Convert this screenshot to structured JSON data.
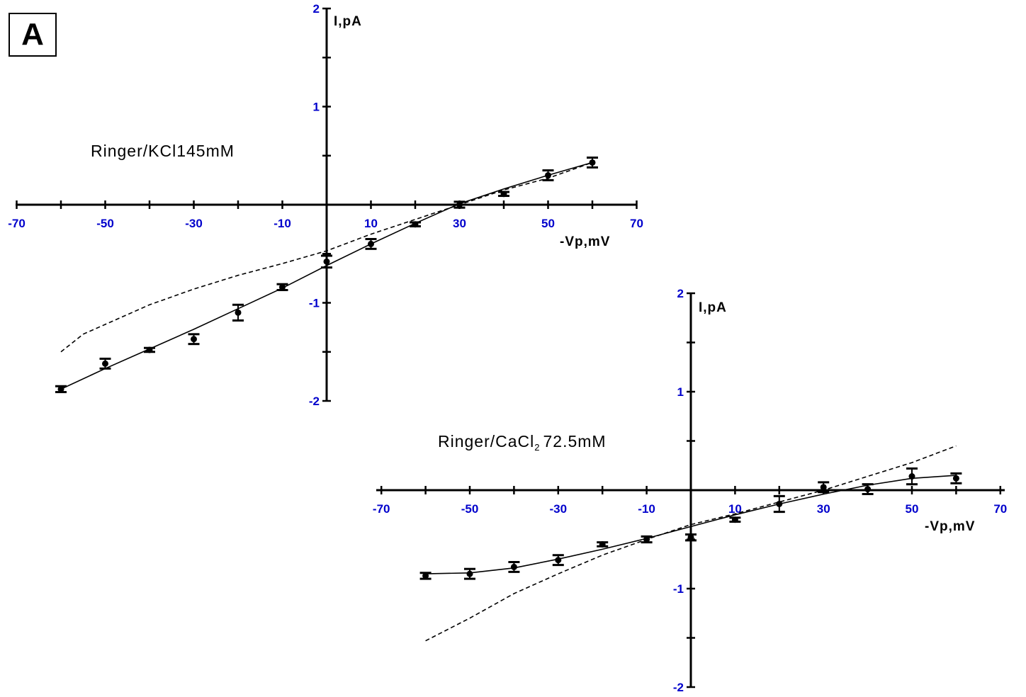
{
  "panel_label": "A",
  "chart_data": [
    {
      "type": "scatter",
      "condition_label": "Ringer/KCl145mM",
      "xlabel": "-Vp,mV",
      "ylabel": "I,pA",
      "xlim": [
        -70,
        70
      ],
      "ylim": [
        -2,
        2
      ],
      "x_tick_labels": [
        "-70",
        "-50",
        "-30",
        "-10",
        "10",
        "30",
        "50",
        "70"
      ],
      "y_tick_labels": [
        "2",
        "1",
        "-1",
        "-2"
      ],
      "grid": false,
      "series": [
        {
          "style": "points-with-error-bars",
          "x": [
            -60,
            -50,
            -40,
            -30,
            -20,
            -10,
            0,
            10,
            20,
            30,
            40,
            50,
            60
          ],
          "y": [
            -1.88,
            -1.62,
            -1.48,
            -1.37,
            -1.1,
            -0.84,
            -0.58,
            -0.4,
            -0.2,
            0.0,
            0.11,
            0.3,
            0.43
          ],
          "err": [
            0.03,
            0.05,
            0.02,
            0.05,
            0.08,
            0.03,
            0.06,
            0.05,
            0.02,
            0.03,
            0.02,
            0.05,
            0.05
          ]
        },
        {
          "style": "solid-fit",
          "x": [
            -60,
            -50,
            -40,
            -30,
            -20,
            -10,
            0,
            10,
            20,
            30,
            40,
            50,
            60
          ],
          "y": [
            -1.88,
            -1.67,
            -1.47,
            -1.27,
            -1.06,
            -0.85,
            -0.62,
            -0.4,
            -0.19,
            0.01,
            0.16,
            0.3,
            0.43
          ]
        },
        {
          "style": "dashed-fit",
          "x": [
            -60,
            -55,
            -50,
            -40,
            -30,
            -20,
            -10,
            0,
            10,
            20,
            30,
            40,
            50,
            60
          ],
          "y": [
            -1.5,
            -1.32,
            -1.22,
            -1.02,
            -0.86,
            -0.72,
            -0.6,
            -0.47,
            -0.3,
            -0.15,
            0.0,
            0.15,
            0.27,
            0.43
          ]
        }
      ]
    },
    {
      "type": "scatter",
      "condition_label_main": "Ringer/CaCl",
      "condition_label_sub": "2",
      "condition_label_tail": "72.5mM",
      "xlabel": "-Vp,mV",
      "ylabel": "I,pA",
      "xlim": [
        -70,
        70
      ],
      "ylim": [
        -2,
        2
      ],
      "x_tick_labels": [
        "-70",
        "-50",
        "-30",
        "-10",
        "10",
        "30",
        "50",
        "70"
      ],
      "y_tick_labels": [
        "2",
        "1",
        "-1",
        "-2"
      ],
      "grid": false,
      "series": [
        {
          "style": "points-with-error-bars",
          "x": [
            -60,
            -50,
            -40,
            -30,
            -20,
            -10,
            0,
            10,
            20,
            30,
            40,
            50,
            60
          ],
          "y": [
            -0.87,
            -0.85,
            -0.78,
            -0.71,
            -0.55,
            -0.5,
            -0.48,
            -0.3,
            -0.14,
            0.03,
            0.01,
            0.14,
            0.12
          ],
          "err": [
            0.03,
            0.05,
            0.05,
            0.05,
            0.02,
            0.03,
            0.03,
            0.02,
            0.08,
            0.05,
            0.05,
            0.08,
            0.05
          ]
        },
        {
          "style": "solid-fit",
          "x": [
            -60,
            -50,
            -40,
            -30,
            -20,
            -10,
            0,
            10,
            20,
            30,
            40,
            50,
            60
          ],
          "y": [
            -0.85,
            -0.84,
            -0.79,
            -0.7,
            -0.6,
            -0.49,
            -0.37,
            -0.25,
            -0.14,
            -0.04,
            0.05,
            0.12,
            0.15
          ]
        },
        {
          "style": "dashed-fit",
          "x": [
            -60,
            -50,
            -40,
            -30,
            -20,
            -10,
            0,
            10,
            20,
            30,
            40,
            50,
            60
          ],
          "y": [
            -1.53,
            -1.3,
            -1.05,
            -0.85,
            -0.66,
            -0.5,
            -0.35,
            -0.24,
            -0.12,
            0.0,
            0.14,
            0.28,
            0.45
          ]
        }
      ]
    }
  ]
}
